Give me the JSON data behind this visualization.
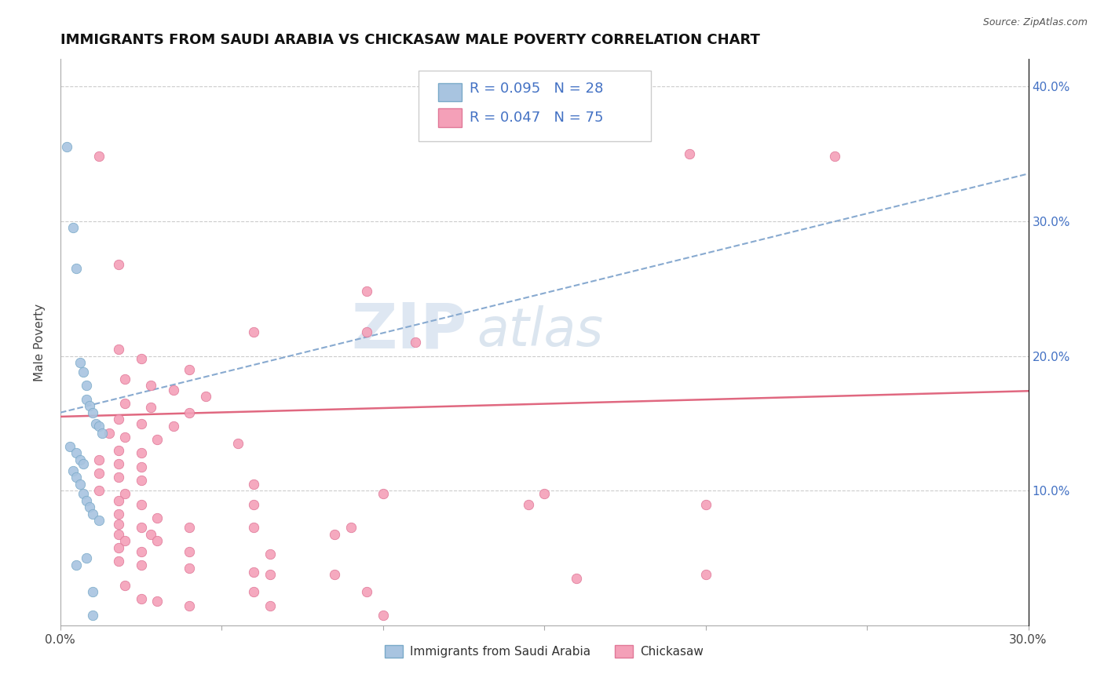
{
  "title": "IMMIGRANTS FROM SAUDI ARABIA VS CHICKASAW MALE POVERTY CORRELATION CHART",
  "source": "Source: ZipAtlas.com",
  "ylabel": "Male Poverty",
  "xmin": 0.0,
  "xmax": 0.3,
  "ymin": 0.0,
  "ymax": 0.42,
  "legend_r1": "R = 0.095",
  "legend_n1": "N = 28",
  "legend_r2": "R = 0.047",
  "legend_n2": "N = 75",
  "blue_scatter_color": "#a8c4e0",
  "blue_edge_color": "#7aaac8",
  "pink_scatter_color": "#f4a0b8",
  "pink_edge_color": "#e07898",
  "blue_line_color": "#88aad0",
  "pink_line_color": "#e06880",
  "watermark_color": "#c8d8ea",
  "scatter_blue": [
    [
      0.002,
      0.355
    ],
    [
      0.004,
      0.295
    ],
    [
      0.005,
      0.265
    ],
    [
      0.006,
      0.195
    ],
    [
      0.007,
      0.188
    ],
    [
      0.008,
      0.178
    ],
    [
      0.008,
      0.168
    ],
    [
      0.009,
      0.163
    ],
    [
      0.01,
      0.158
    ],
    [
      0.011,
      0.15
    ],
    [
      0.012,
      0.148
    ],
    [
      0.013,
      0.143
    ],
    [
      0.003,
      0.133
    ],
    [
      0.005,
      0.128
    ],
    [
      0.006,
      0.123
    ],
    [
      0.007,
      0.12
    ],
    [
      0.004,
      0.115
    ],
    [
      0.005,
      0.11
    ],
    [
      0.006,
      0.105
    ],
    [
      0.007,
      0.098
    ],
    [
      0.008,
      0.093
    ],
    [
      0.009,
      0.088
    ],
    [
      0.01,
      0.083
    ],
    [
      0.012,
      0.078
    ],
    [
      0.008,
      0.05
    ],
    [
      0.005,
      0.045
    ],
    [
      0.01,
      0.025
    ],
    [
      0.01,
      0.008
    ]
  ],
  "scatter_pink": [
    [
      0.012,
      0.348
    ],
    [
      0.24,
      0.348
    ],
    [
      0.195,
      0.35
    ],
    [
      0.018,
      0.268
    ],
    [
      0.095,
      0.248
    ],
    [
      0.06,
      0.218
    ],
    [
      0.095,
      0.218
    ],
    [
      0.11,
      0.21
    ],
    [
      0.018,
      0.205
    ],
    [
      0.025,
      0.198
    ],
    [
      0.04,
      0.19
    ],
    [
      0.02,
      0.183
    ],
    [
      0.028,
      0.178
    ],
    [
      0.035,
      0.175
    ],
    [
      0.045,
      0.17
    ],
    [
      0.02,
      0.165
    ],
    [
      0.028,
      0.162
    ],
    [
      0.04,
      0.158
    ],
    [
      0.018,
      0.153
    ],
    [
      0.025,
      0.15
    ],
    [
      0.035,
      0.148
    ],
    [
      0.015,
      0.143
    ],
    [
      0.02,
      0.14
    ],
    [
      0.03,
      0.138
    ],
    [
      0.055,
      0.135
    ],
    [
      0.018,
      0.13
    ],
    [
      0.025,
      0.128
    ],
    [
      0.012,
      0.123
    ],
    [
      0.018,
      0.12
    ],
    [
      0.025,
      0.118
    ],
    [
      0.012,
      0.113
    ],
    [
      0.018,
      0.11
    ],
    [
      0.025,
      0.108
    ],
    [
      0.06,
      0.105
    ],
    [
      0.012,
      0.1
    ],
    [
      0.02,
      0.098
    ],
    [
      0.1,
      0.098
    ],
    [
      0.15,
      0.098
    ],
    [
      0.018,
      0.093
    ],
    [
      0.025,
      0.09
    ],
    [
      0.06,
      0.09
    ],
    [
      0.145,
      0.09
    ],
    [
      0.2,
      0.09
    ],
    [
      0.018,
      0.083
    ],
    [
      0.03,
      0.08
    ],
    [
      0.018,
      0.075
    ],
    [
      0.025,
      0.073
    ],
    [
      0.04,
      0.073
    ],
    [
      0.06,
      0.073
    ],
    [
      0.09,
      0.073
    ],
    [
      0.018,
      0.068
    ],
    [
      0.028,
      0.068
    ],
    [
      0.085,
      0.068
    ],
    [
      0.02,
      0.063
    ],
    [
      0.03,
      0.063
    ],
    [
      0.018,
      0.058
    ],
    [
      0.025,
      0.055
    ],
    [
      0.04,
      0.055
    ],
    [
      0.065,
      0.053
    ],
    [
      0.018,
      0.048
    ],
    [
      0.025,
      0.045
    ],
    [
      0.04,
      0.043
    ],
    [
      0.06,
      0.04
    ],
    [
      0.065,
      0.038
    ],
    [
      0.085,
      0.038
    ],
    [
      0.16,
      0.035
    ],
    [
      0.2,
      0.038
    ],
    [
      0.02,
      0.03
    ],
    [
      0.06,
      0.025
    ],
    [
      0.095,
      0.025
    ],
    [
      0.025,
      0.02
    ],
    [
      0.03,
      0.018
    ],
    [
      0.04,
      0.015
    ],
    [
      0.065,
      0.015
    ],
    [
      0.1,
      0.008
    ]
  ]
}
